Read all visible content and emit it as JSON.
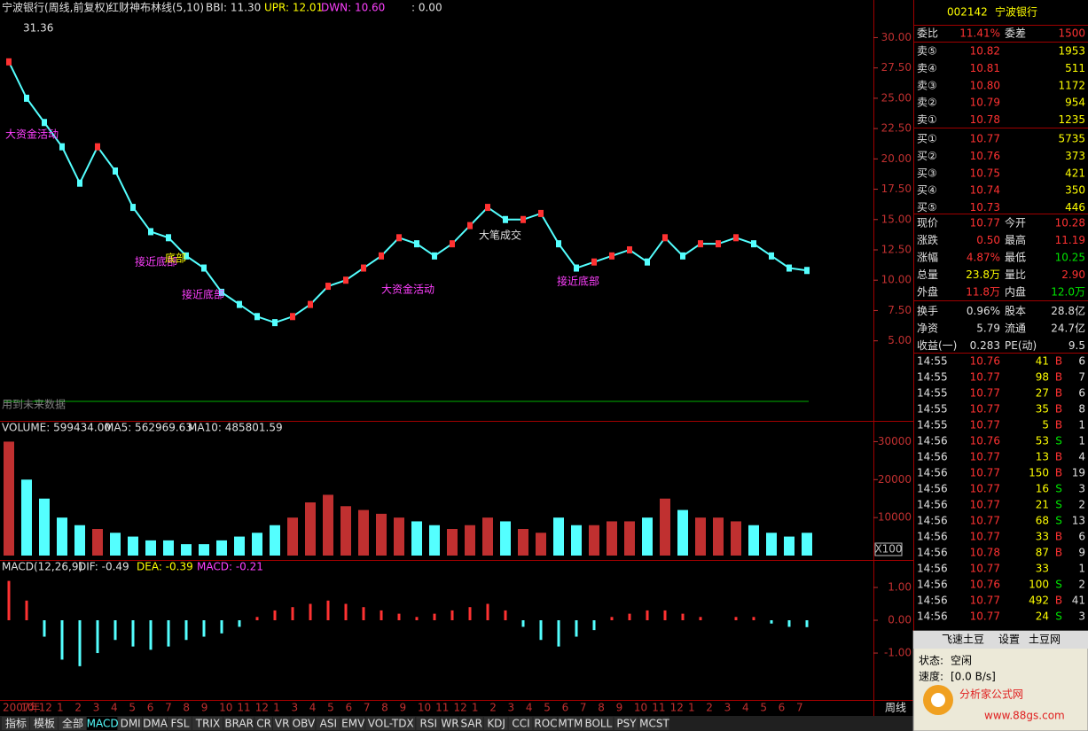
{
  "price_panel": {
    "title": "宁波银行(周线,前复权)",
    "indicator": "红财神布林线(5,10)",
    "bbi": "BBI: 11.30",
    "upr": "UPR: 12.01",
    "dwn": "DWN: 10.60",
    "extra": ": 0.00",
    "high_label": "31.36",
    "annotations": [
      "大资金活动",
      "接近底部",
      "底部",
      "接近底部",
      "大资金活动",
      "大笔成交",
      "接近底部",
      "用到未来数据"
    ],
    "ylim": [
      -1.6,
      33.1
    ],
    "yticks": [
      {
        "value": 5,
        "label": "5.00"
      },
      {
        "value": 7.5,
        "label": "7.50"
      },
      {
        "value": 10,
        "label": "10.00"
      },
      {
        "value": 12.5,
        "label": "12.50"
      },
      {
        "value": 15,
        "label": "15.00"
      },
      {
        "value": 17.5,
        "label": "17.50"
      },
      {
        "value": 20,
        "label": "20.00"
      },
      {
        "value": 22.5,
        "label": "22.50"
      },
      {
        "value": 25,
        "label": "25.00"
      },
      {
        "value": 27.5,
        "label": "27.50"
      },
      {
        "value": 30,
        "label": "30.00"
      }
    ],
    "closes": [
      28,
      25,
      23,
      21,
      18,
      21,
      19,
      16,
      14,
      13.5,
      12,
      11,
      9,
      8,
      7,
      6.5,
      7,
      8,
      9.5,
      10,
      11,
      12,
      13.5,
      13,
      12,
      13,
      14.5,
      16,
      15,
      15,
      15.5,
      13,
      11,
      11.5,
      12,
      12.5,
      11.5,
      13.5,
      12,
      13,
      13,
      13.5,
      13,
      12,
      11,
      10.8
    ]
  },
  "volume_panel": {
    "label": "VOLUME: 599434.00",
    "ma5": "MA5: 562969.63",
    "ma10": "MA10: 485801.59",
    "unit": "X100",
    "ylim": [
      0,
      35000
    ],
    "yticks": [
      10000,
      20000,
      30000
    ],
    "values": [
      30000,
      20000,
      15000,
      10000,
      8000,
      7000,
      6000,
      5000,
      4000,
      4000,
      3000,
      3000,
      4000,
      5000,
      6000,
      8000,
      10000,
      14000,
      16000,
      13000,
      12000,
      11000,
      10000,
      9000,
      8000,
      7000,
      8000,
      10000,
      9000,
      7000,
      6000,
      10000,
      8000,
      8000,
      9000,
      9000,
      10000,
      15000,
      12000,
      10000,
      10000,
      9000,
      8000,
      6000,
      5000,
      5994
    ]
  },
  "macd_panel": {
    "label": "MACD(12,26,9)",
    "dif": "DIF: -0.49",
    "dea": "DEA: -0.39",
    "macd": "MACD: -0.21",
    "ylim": [
      -2.43,
      1.81
    ],
    "yticks": [
      {
        "value": -1,
        "label": "-1.00"
      },
      {
        "value": 0,
        "label": "0.00"
      },
      {
        "value": 1,
        "label": "1.00"
      }
    ],
    "values": [
      1.2,
      0.6,
      -0.5,
      -1.2,
      -1.4,
      -1.0,
      -0.6,
      -0.8,
      -0.9,
      -0.8,
      -0.6,
      -0.5,
      -0.4,
      -0.2,
      0.1,
      0.3,
      0.4,
      0.5,
      0.6,
      0.5,
      0.4,
      0.3,
      0.2,
      0.1,
      0.2,
      0.3,
      0.4,
      0.5,
      0.3,
      -0.2,
      -0.6,
      -0.8,
      -0.5,
      -0.3,
      0.1,
      0.2,
      0.3,
      0.3,
      0.2,
      0.1,
      0.0,
      0.1,
      0.1,
      -0.1,
      -0.2,
      -0.21
    ]
  },
  "date_axis": {
    "labels": [
      "2007年",
      "10",
      "12",
      "1",
      "2",
      "3",
      "4",
      "5",
      "6",
      "7",
      "8",
      "9",
      "10",
      "11",
      "12",
      "1",
      "3",
      "4",
      "5",
      "6",
      "7",
      "8",
      "9",
      "10",
      "11",
      "12",
      "1",
      "2",
      "3",
      "4",
      "5",
      "6",
      "7",
      "8",
      "9",
      "10",
      "11",
      "12",
      "1",
      "2",
      "3",
      "4",
      "5",
      "6",
      "7"
    ],
    "period": "周线"
  },
  "quote": {
    "code": "002142",
    "name": "宁波银行",
    "ratio": [
      "委比",
      "11.41%",
      "委差",
      "1500"
    ],
    "order_book": [
      [
        "卖⑤",
        "10.82",
        "1953"
      ],
      [
        "卖④",
        "10.81",
        "511"
      ],
      [
        "卖③",
        "10.80",
        "1172"
      ],
      [
        "卖②",
        "10.79",
        "954"
      ],
      [
        "卖①",
        "10.78",
        "1235"
      ],
      [
        "买①",
        "10.77",
        "5735"
      ],
      [
        "买②",
        "10.76",
        "373"
      ],
      [
        "买③",
        "10.75",
        "421"
      ],
      [
        "买④",
        "10.74",
        "350"
      ],
      [
        "买⑤",
        "10.73",
        "446"
      ]
    ],
    "stats": [
      [
        "现价",
        "10.77",
        "今开",
        "10.28"
      ],
      [
        "涨跌",
        "0.50",
        "最高",
        "11.19"
      ],
      [
        "涨幅",
        "4.87%",
        "最低",
        "10.25"
      ],
      [
        "总量",
        "23.8万",
        "量比",
        "2.90"
      ],
      [
        "外盘",
        "11.8万",
        "内盘",
        "12.0万"
      ],
      [
        "换手",
        "0.96%",
        "股本",
        "28.8亿"
      ],
      [
        "净资",
        "5.79",
        "流通",
        "24.7亿"
      ],
      [
        "收益(一)",
        "0.283",
        "PE(动)",
        "9.5"
      ]
    ]
  },
  "trades": [
    [
      "14:55",
      "10.76",
      "41",
      "B",
      "6"
    ],
    [
      "14:55",
      "10.77",
      "98",
      "B",
      "7"
    ],
    [
      "14:55",
      "10.77",
      "27",
      "B",
      "6"
    ],
    [
      "14:55",
      "10.77",
      "35",
      "B",
      "8"
    ],
    [
      "14:55",
      "10.77",
      "5",
      "B",
      "1"
    ],
    [
      "14:56",
      "10.76",
      "53",
      "S",
      "1"
    ],
    [
      "14:56",
      "10.77",
      "13",
      "B",
      "4"
    ],
    [
      "14:56",
      "10.77",
      "150",
      "B",
      "19"
    ],
    [
      "14:56",
      "10.77",
      "16",
      "S",
      "3"
    ],
    [
      "14:56",
      "10.77",
      "21",
      "S",
      "2"
    ],
    [
      "14:56",
      "10.77",
      "68",
      "S",
      "13"
    ],
    [
      "14:56",
      "10.77",
      "33",
      "B",
      "6"
    ],
    [
      "14:56",
      "10.78",
      "87",
      "B",
      "9"
    ],
    [
      "14:56",
      "10.77",
      "33",
      "1"
    ],
    [
      "14:56",
      "10.76",
      "100",
      "S",
      "2"
    ],
    [
      "14:56",
      "10.77",
      "492",
      "B",
      "41"
    ],
    [
      "14:56",
      "10.77",
      "24",
      "S",
      "3"
    ]
  ],
  "tabs": [
    "指标",
    "模板",
    "全部",
    "MACD",
    "DMI",
    "DMA",
    "FSL",
    "TRIX",
    "BRAR",
    "CR",
    "VR",
    "OBV",
    "ASI",
    "EMV",
    "VOL-TDX",
    "RSI",
    "WR",
    "SAR",
    "KDJ",
    "CCI",
    "ROC",
    "MTM",
    "BOLL",
    "PSY",
    "MCST"
  ],
  "popup": {
    "title": "飞速土豆",
    "settings": "设置",
    "site": "土豆网",
    "status_label": "状态:",
    "status": "空闲",
    "speed_label": "速度:",
    "speed": "[0.0 B/s]",
    "brand": "分析家公式网",
    "url": "www.88gs.com"
  }
}
